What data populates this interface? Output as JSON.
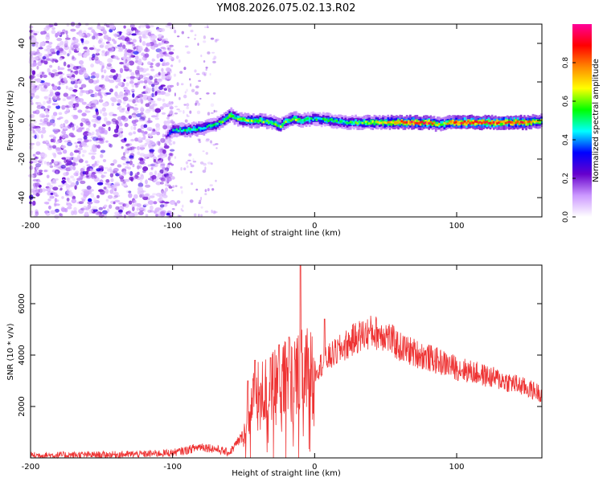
{
  "title": "YM08.2026.075.02.13.R02",
  "chart_data": [
    {
      "type": "heatmap",
      "xlabel": "Height of straight line (km)",
      "ylabel": "Frequency (Hz)",
      "xlim": [
        -200,
        160
      ],
      "ylim": [
        -50,
        50
      ],
      "x_ticks": [
        -200,
        -100,
        0,
        100
      ],
      "x_tick_labels": [
        "-200",
        "-100",
        "0",
        "100"
      ],
      "y_ticks": [
        -40,
        -20,
        0,
        20,
        40
      ],
      "y_tick_labels": [
        "-40",
        "-20",
        "0",
        "20",
        "40"
      ],
      "colorbar": {
        "label": "Normalized spectral amplitude",
        "range": [
          0,
          1
        ],
        "ticks": [
          0.0,
          0.2,
          0.4,
          0.6,
          0.8
        ],
        "tick_labels": [
          "0.0",
          "0.2",
          "0.4",
          "0.6",
          "0.8"
        ],
        "colors": [
          "#ffffff",
          "#cc99ff",
          "#6600cc",
          "#0000ff",
          "#00ffff",
          "#00ff00",
          "#ffff00",
          "#ff8800",
          "#ff0000",
          "#ff0099"
        ]
      },
      "noise_region_x": [
        -200,
        -100
      ],
      "sparse_noise_x": [
        -100,
        -68
      ],
      "ridge": {
        "x": [
          -105,
          -100,
          -90,
          -80,
          -70,
          -65,
          -60,
          -55,
          -50,
          -40,
          -30,
          -25,
          -20,
          -15,
          -10,
          0,
          10,
          20,
          30,
          40,
          50,
          60,
          70,
          80,
          85,
          90,
          95,
          100,
          110,
          120,
          130,
          140,
          150,
          160
        ],
        "frequency": [
          -8,
          -5,
          -5,
          -4,
          -2,
          0,
          3,
          1,
          0,
          0,
          -1,
          -3,
          0,
          1,
          0,
          1,
          0,
          -1,
          -1,
          -1,
          -1,
          -1,
          -1,
          -1,
          -2,
          -2,
          -1,
          -1,
          -1,
          -1,
          -1,
          -1,
          -1,
          0
        ],
        "amplitude": [
          0.2,
          0.45,
          0.5,
          0.5,
          0.5,
          0.55,
          0.6,
          0.55,
          0.6,
          0.6,
          0.55,
          0.6,
          0.55,
          0.6,
          0.55,
          0.5,
          0.5,
          0.5,
          0.55,
          0.6,
          0.7,
          0.8,
          0.85,
          0.85,
          0.7,
          0.6,
          0.8,
          0.85,
          0.9,
          0.9,
          0.85,
          0.85,
          0.8,
          0.6
        ]
      }
    },
    {
      "type": "line",
      "xlabel": "Height of straight line (km)",
      "ylabel": "SNR (10 * v/v)",
      "xlim": [
        -200,
        160
      ],
      "ylim": [
        0,
        7500
      ],
      "x_ticks": [
        -200,
        -100,
        0,
        100
      ],
      "x_tick_labels": [
        "-200",
        "-100",
        "0",
        "100"
      ],
      "y_ticks": [
        2000,
        4000,
        6000
      ],
      "y_tick_labels": [
        "2000",
        "4000",
        "6000"
      ],
      "color": "#ee3333",
      "series": [
        {
          "name": "SNR",
          "x": [
            -200,
            -150,
            -120,
            -100,
            -90,
            -80,
            -70,
            -60,
            -50,
            -45,
            -40,
            -30,
            -20,
            -10,
            0,
            10,
            20,
            30,
            40,
            50,
            60,
            80,
            100,
            120,
            140,
            160
          ],
          "values": [
            100,
            120,
            150,
            200,
            300,
            450,
            350,
            200,
            900,
            2200,
            2400,
            2700,
            3000,
            3200,
            3400,
            3900,
            4300,
            4700,
            4900,
            4800,
            4300,
            3900,
            3500,
            3200,
            2900,
            2500
          ]
        }
      ],
      "spikes": [
        {
          "x": -47,
          "value": 3000
        },
        {
          "x": -42,
          "value": 3800
        },
        {
          "x": -31,
          "value": 3900
        },
        {
          "x": -25,
          "value": 4400
        },
        {
          "x": -18,
          "value": 4700
        },
        {
          "x": -10,
          "value": 7500
        },
        {
          "x": 7,
          "value": 5400
        }
      ]
    }
  ]
}
